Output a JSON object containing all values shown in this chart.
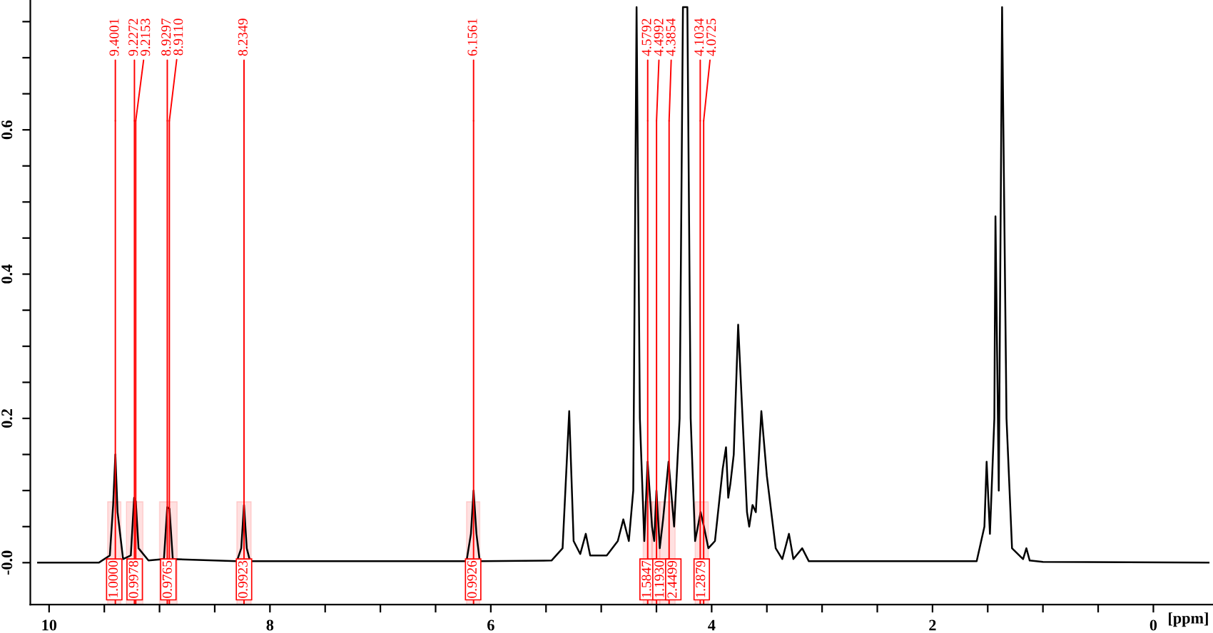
{
  "chart_data": {
    "type": "line",
    "xlabel": "[ppm]",
    "xlim": [
      10.17,
      -0.54
    ],
    "ylim": [
      -0.058,
      0.78
    ],
    "xticks": [
      10,
      {
        "value": 9.5,
        "label": null
      },
      {
        "value": 9,
        "label": null
      },
      {
        "value": 8.5,
        "label": null
      },
      8,
      {
        "value": 7.5,
        "label": null
      },
      {
        "value": 7,
        "label": null
      },
      {
        "value": 6.5,
        "label": null
      },
      6,
      {
        "value": 5.5,
        "label": null
      },
      {
        "value": 5,
        "label": null
      },
      {
        "value": 4.5,
        "label": null
      },
      4,
      {
        "value": 3.5,
        "label": null
      },
      {
        "value": 3,
        "label": null
      },
      {
        "value": 2.5,
        "label": null
      },
      2,
      {
        "value": 1.5,
        "label": null
      },
      {
        "value": 1,
        "label": null
      },
      {
        "value": 0.5,
        "label": null
      },
      0
    ],
    "yticks": [
      {
        "value": 0,
        "label": "-0.0"
      },
      {
        "value": 0.05,
        "label": null
      },
      {
        "value": 0.1,
        "label": null
      },
      {
        "value": 0.15,
        "label": null
      },
      0.2,
      {
        "value": 0.25,
        "label": null
      },
      {
        "value": 0.3,
        "label": null
      },
      {
        "value": 0.35,
        "label": null
      },
      0.4,
      {
        "value": 0.45,
        "label": null
      },
      {
        "value": 0.5,
        "label": null
      },
      {
        "value": 0.55,
        "label": null
      },
      0.6,
      {
        "value": 0.65,
        "label": null
      },
      {
        "value": 0.7,
        "label": null
      },
      {
        "value": 0.75,
        "label": null
      }
    ],
    "grid": false,
    "legend": false,
    "marker": "none",
    "line_style": "solid",
    "series": [
      {
        "color": "#000000",
        "x": [
          10.1,
          9.55,
          9.45,
          9.42,
          9.4,
          9.38,
          9.33,
          9.26,
          9.23,
          9.215,
          9.19,
          9.1,
          8.96,
          8.93,
          8.91,
          8.88,
          8.3,
          8.26,
          8.235,
          8.21,
          8.18,
          6.22,
          6.18,
          6.156,
          6.13,
          6.1,
          5.45,
          5.35,
          5.29,
          5.25,
          5.19,
          5.14,
          5.1,
          4.95,
          4.85,
          4.8,
          4.75,
          4.71,
          4.68,
          4.65,
          4.61,
          4.58,
          4.54,
          4.52,
          4.5,
          4.47,
          4.44,
          4.39,
          4.34,
          4.29,
          4.26,
          4.22,
          4.19,
          4.15,
          4.1,
          4.07,
          4.03,
          3.97,
          3.9,
          3.87,
          3.85,
          3.83,
          3.8,
          3.76,
          3.72,
          3.68,
          3.66,
          3.63,
          3.6,
          3.55,
          3.5,
          3.42,
          3.36,
          3.3,
          3.26,
          3.18,
          3.12,
          1.6,
          1.53,
          1.51,
          1.48,
          1.44,
          1.43,
          1.4,
          1.37,
          1.33,
          1.28,
          1.18,
          1.15,
          1.12,
          1.0,
          -0.5
        ],
        "values": [
          0,
          0,
          0.01,
          0.08,
          0.15,
          0.07,
          0.005,
          0.01,
          0.09,
          0.085,
          0.02,
          0.003,
          0.005,
          0.077,
          0.075,
          0.005,
          0.002,
          0.02,
          0.08,
          0.02,
          0.002,
          0.002,
          0.04,
          0.1,
          0.04,
          0.002,
          0.003,
          0.02,
          0.21,
          0.03,
          0.012,
          0.04,
          0.01,
          0.01,
          0.03,
          0.06,
          0.03,
          0.1,
          0.77,
          0.2,
          0.03,
          0.14,
          0.05,
          0.03,
          0.1,
          0.02,
          0.06,
          0.14,
          0.05,
          0.2,
          0.77,
          0.77,
          0.2,
          0.03,
          0.07,
          0.05,
          0.02,
          0.03,
          0.13,
          0.16,
          0.09,
          0.11,
          0.15,
          0.33,
          0.2,
          0.07,
          0.05,
          0.08,
          0.07,
          0.21,
          0.12,
          0.02,
          0.005,
          0.04,
          0.005,
          0.02,
          0.002,
          0.002,
          0.05,
          0.14,
          0.04,
          0.2,
          0.48,
          0.1,
          0.77,
          0.2,
          0.02,
          0.005,
          0.02,
          0.003,
          0.001,
          0
        ]
      }
    ],
    "ref_lines": [
      {
        "axis": "x",
        "value": 9.4001,
        "label": "9.4001",
        "color": "#ff0000"
      },
      {
        "axis": "x",
        "value": 9.2272,
        "label": "9.2272",
        "color": "#ff0000"
      },
      {
        "axis": "x",
        "value": 9.2153,
        "label": "9.2153",
        "color": "#ff0000"
      },
      {
        "axis": "x",
        "value": 8.9297,
        "label": "8.9297",
        "color": "#ff0000"
      },
      {
        "axis": "x",
        "value": 8.911,
        "label": "8.9110",
        "color": "#ff0000"
      },
      {
        "axis": "x",
        "value": 8.2349,
        "label": "8.2349",
        "color": "#ff0000"
      },
      {
        "axis": "x",
        "value": 6.1561,
        "label": "6.1561",
        "color": "#ff0000"
      },
      {
        "axis": "x",
        "value": 4.5792,
        "label": "4.5792",
        "color": "#ff0000"
      },
      {
        "axis": "x",
        "value": 4.4992,
        "label": "4.4992",
        "color": "#ff0000"
      },
      {
        "axis": "x",
        "value": 4.3854,
        "label": "4.3854",
        "color": "#ff0000"
      },
      {
        "axis": "x",
        "value": 4.1034,
        "label": "4.1034",
        "color": "#ff0000"
      },
      {
        "axis": "x",
        "value": 4.0725,
        "label": "4.0725",
        "color": "#ff0000"
      }
    ],
    "bands": [
      {
        "axis": "x",
        "from": 9.47,
        "to": 9.35,
        "label": "1.0000",
        "color": "#ff0000"
      },
      {
        "axis": "x",
        "from": 9.3,
        "to": 9.15,
        "label": "0.9978",
        "color": "#ff0000"
      },
      {
        "axis": "x",
        "from": 9.0,
        "to": 8.84,
        "label": "0.9765",
        "color": "#ff0000"
      },
      {
        "axis": "x",
        "from": 8.3,
        "to": 8.17,
        "label": "0.9923",
        "color": "#ff0000"
      },
      {
        "axis": "x",
        "from": 6.22,
        "to": 6.1,
        "label": "0.9926",
        "color": "#ff0000"
      },
      {
        "axis": "x",
        "from": 4.62,
        "to": 4.54,
        "label": "1.5847",
        "color": "#ff0000"
      },
      {
        "axis": "x",
        "from": 4.54,
        "to": 4.47,
        "label": "1.1930",
        "color": "#ff0000"
      },
      {
        "axis": "x",
        "from": 4.47,
        "to": 4.33,
        "label": "2.4499",
        "color": "#ff0000"
      },
      {
        "axis": "x",
        "from": 4.15,
        "to": 4.03,
        "label": "1.2879",
        "color": "#ff0000"
      }
    ]
  }
}
